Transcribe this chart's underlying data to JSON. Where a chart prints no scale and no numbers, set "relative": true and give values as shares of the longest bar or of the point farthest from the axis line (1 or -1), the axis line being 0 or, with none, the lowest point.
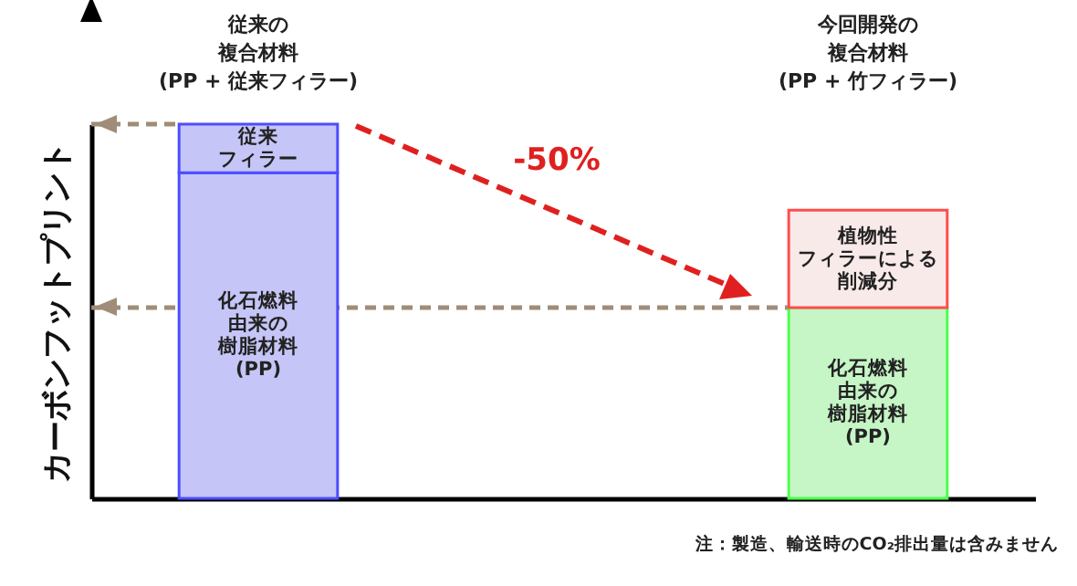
{
  "chart_data": {
    "type": "bar",
    "stacked": true,
    "relative": true,
    "ylabel": "カーボンフットプリント",
    "categories": [
      "従来の複合材料(PP + 従来フィラー)",
      "今回開発の複合材料(PP + 竹フィラー)"
    ],
    "series": [
      {
        "name": "化石燃料由来の樹脂材料(PP)",
        "colors": [
          "#c5c5f7",
          "#c6f5c6"
        ],
        "values": [
          0.87,
          0.51
        ]
      },
      {
        "name": "従来フィラー",
        "color": "#c5c5f7",
        "values": [
          0.13,
          null
        ]
      },
      {
        "name": "植物性フィラーによる削減分",
        "color": "#f9eaea",
        "values": [
          null,
          0.26
        ]
      }
    ],
    "ref_lines": [
      {
        "axis": "y",
        "value": 1,
        "color": "#a08c78",
        "line_style": "dashed"
      },
      {
        "axis": "y",
        "value": 0.51,
        "color": "#a08c78",
        "line_style": "dashed"
      }
    ],
    "annotations": [
      "-50%",
      "注：製造、輸送時のCO₂排出量は含みません"
    ]
  }
}
